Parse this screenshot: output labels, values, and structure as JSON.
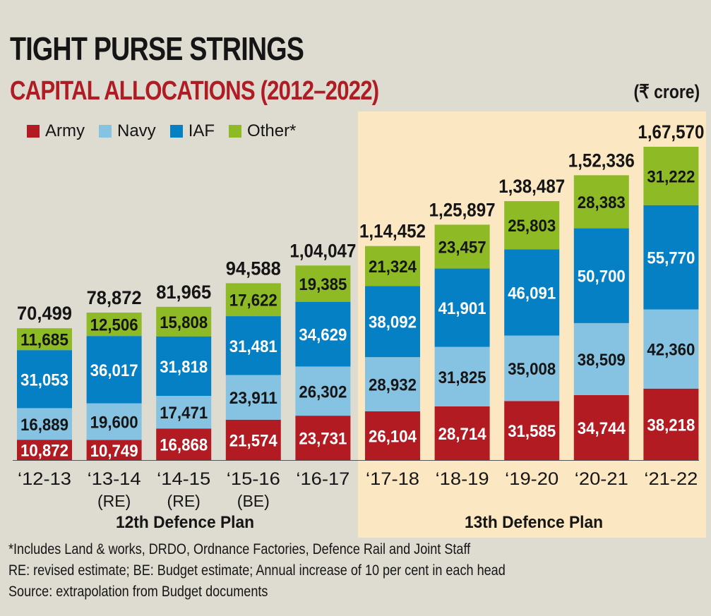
{
  "header": {
    "title": "TIGHT PURSE STRINGS",
    "subtitle": "CAPITAL ALLOCATIONS (2012–2022)",
    "unit": "(₹ crore)"
  },
  "legend": [
    {
      "label": "Army",
      "color": "#b31b22"
    },
    {
      "label": "Navy",
      "color": "#86c2e2"
    },
    {
      "label": "IAF",
      "color": "#0580c4"
    },
    {
      "label": "Other*",
      "color": "#8dba25"
    }
  ],
  "notes": [
    "*Includes Land & works, DRDO, Ordnance Factories, Defence Rail and Joint Staff",
    "RE: revised estimate; BE: Budget estimate; Annual increase of 10 per cent in each head",
    "Source: extrapolation from Budget documents"
  ],
  "chart_data": {
    "type": "bar",
    "stacked": true,
    "title": "TIGHT PURSE STRINGS",
    "subtitle": "CAPITAL ALLOCATIONS (2012–2022)",
    "unit": "₹ crore",
    "categories": [
      "'12-13",
      "'13-14",
      "'14-15",
      "'15-16",
      "'16-17",
      "'17-18",
      "'18-19",
      "'19-20",
      "'20-21",
      "'21-22"
    ],
    "category_notes": [
      "",
      "(RE)",
      "(RE)",
      "(BE)",
      "",
      "",
      "",
      "",
      "",
      ""
    ],
    "series": [
      {
        "name": "Army",
        "color": "#b31b22",
        "label_color": "#ffffff",
        "values": [
          10872,
          10749,
          16868,
          21574,
          23731,
          26104,
          28714,
          31585,
          34744,
          38218
        ],
        "labels": [
          "10,872",
          "10,749",
          "16,868",
          "21,574",
          "23,731",
          "26,104",
          "28,714",
          "31,585",
          "34,744",
          "38,218"
        ]
      },
      {
        "name": "Navy",
        "color": "#86c2e2",
        "label_color": "#151515",
        "values": [
          16889,
          19600,
          17471,
          23911,
          26302,
          28932,
          31825,
          35008,
          38509,
          42360
        ],
        "labels": [
          "16,889",
          "19,600",
          "17,471",
          "23,911",
          "26,302",
          "28,932",
          "31,825",
          "35,008",
          "38,509",
          "42,360"
        ]
      },
      {
        "name": "IAF",
        "color": "#0580c4",
        "label_color": "#ffffff",
        "values": [
          31053,
          36017,
          31818,
          31481,
          34629,
          38092,
          41901,
          46091,
          50700,
          55770
        ],
        "labels": [
          "31,053",
          "36,017",
          "31,818",
          "31,481",
          "34,629",
          "38,092",
          "41,901",
          "46,091",
          "50,700",
          "55,770"
        ]
      },
      {
        "name": "Other*",
        "color": "#8dba25",
        "label_color": "#151515",
        "values": [
          11685,
          12506,
          15808,
          17622,
          19385,
          21324,
          23457,
          25803,
          28383,
          31222
        ],
        "labels": [
          "11,685",
          "12,506",
          "15,808",
          "17,622",
          "19,385",
          "21,324",
          "23,457",
          "25,803",
          "28,383",
          "31,222"
        ]
      }
    ],
    "totals": [
      70499,
      78872,
      81965,
      94588,
      104047,
      114452,
      125897,
      138487,
      152336,
      167570
    ],
    "total_labels": [
      "70,499",
      "78,872",
      "81,965",
      "94,588",
      "1,04,047",
      "1,14,452",
      "1,25,897",
      "1,38,487",
      "1,52,336",
      "1,67,570"
    ],
    "groups": [
      {
        "label": "12th Defence Plan",
        "categories": [
          "'12-13",
          "'13-14",
          "'14-15",
          "'15-16",
          "'16-17"
        ]
      },
      {
        "label": "13th Defence Plan",
        "categories": [
          "'17-18",
          "'18-19",
          "'19-20",
          "'20-21",
          "'21-22"
        ],
        "highlighted": true
      }
    ],
    "xlabel": "",
    "ylabel": "",
    "ylim": [
      0,
      167570
    ],
    "grid": false,
    "legend_position": "top-left"
  }
}
